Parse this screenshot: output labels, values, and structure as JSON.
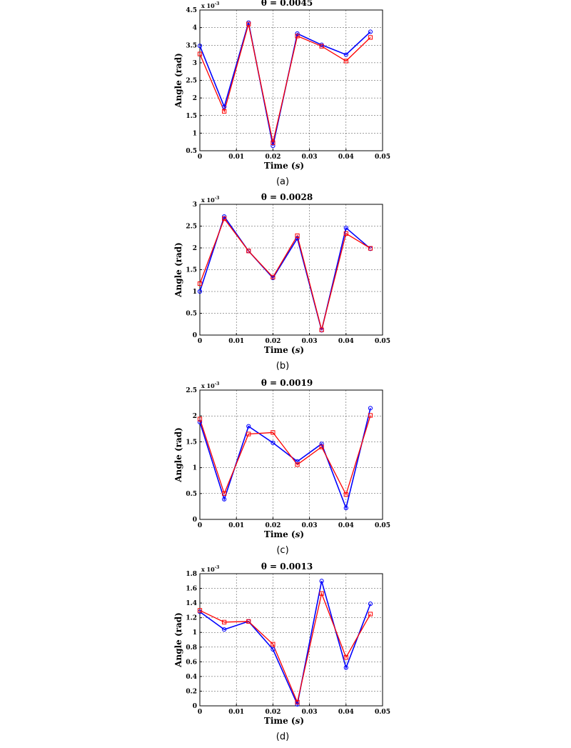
{
  "chart_data": [
    {
      "type": "line",
      "title": "θ = 0.0045",
      "caption": "(a)",
      "xlabel": "Time (s)",
      "ylabel": "Angle (rad)",
      "y_multiplier": "x 10",
      "y_multiplier_exp": "-3",
      "xlim": [
        0,
        0.05
      ],
      "ylim": [
        0.5,
        4.5
      ],
      "xticks": [
        "0",
        "0.01",
        "0.02",
        "0.03",
        "0.04",
        "0.05"
      ],
      "yticks": [
        "0.5",
        "1",
        "1.5",
        "2",
        "2.5",
        "3",
        "3.5",
        "4",
        "4.5"
      ],
      "grid": true,
      "x": [
        0,
        0.00667,
        0.01333,
        0.02,
        0.02667,
        0.03333,
        0.04,
        0.04667
      ],
      "series": [
        {
          "color": "#0000ff",
          "marker": "circle",
          "values": [
            3.48,
            1.75,
            4.14,
            0.64,
            3.83,
            3.51,
            3.23,
            3.88
          ]
        },
        {
          "color": "#ff0000",
          "marker": "square",
          "values": [
            3.25,
            1.62,
            4.1,
            0.73,
            3.76,
            3.47,
            3.05,
            3.72
          ]
        }
      ]
    },
    {
      "type": "line",
      "title": "θ = 0.0028",
      "caption": "(b)",
      "xlabel": "Time (s)",
      "ylabel": "Angle (rad)",
      "y_multiplier": "x 10",
      "y_multiplier_exp": "-3",
      "xlim": [
        0,
        0.05
      ],
      "ylim": [
        0,
        3
      ],
      "xticks": [
        "0",
        "0.01",
        "0.02",
        "0.03",
        "0.04",
        "0.05"
      ],
      "yticks": [
        "0",
        "0.5",
        "1",
        "1.5",
        "2",
        "2.5",
        "3"
      ],
      "grid": true,
      "x": [
        0,
        0.00667,
        0.01333,
        0.02,
        0.02667,
        0.03333,
        0.04,
        0.04667
      ],
      "series": [
        {
          "color": "#0000ff",
          "marker": "circle",
          "values": [
            1.0,
            2.72,
            1.93,
            1.31,
            2.22,
            0.11,
            2.46,
            1.98
          ]
        },
        {
          "color": "#ff0000",
          "marker": "square",
          "values": [
            1.18,
            2.67,
            1.93,
            1.33,
            2.28,
            0.12,
            2.33,
            1.99
          ]
        }
      ]
    },
    {
      "type": "line",
      "title": "θ = 0.0019",
      "caption": "(c)",
      "xlabel": "Time (s)",
      "ylabel": "Angle (rad)",
      "y_multiplier": "x 10",
      "y_multiplier_exp": "-3",
      "xlim": [
        0,
        0.05
      ],
      "ylim": [
        0,
        2.5
      ],
      "xticks": [
        "0",
        "0.01",
        "0.02",
        "0.03",
        "0.04",
        "0.05"
      ],
      "yticks": [
        "0",
        "0.5",
        "1",
        "1.5",
        "2",
        "2.5"
      ],
      "grid": true,
      "x": [
        0,
        0.00667,
        0.01333,
        0.02,
        0.02667,
        0.03333,
        0.04,
        0.04667
      ],
      "series": [
        {
          "color": "#0000ff",
          "marker": "circle",
          "values": [
            1.88,
            0.39,
            1.8,
            1.48,
            1.12,
            1.46,
            0.22,
            2.15
          ]
        },
        {
          "color": "#ff0000",
          "marker": "square",
          "values": [
            1.94,
            0.5,
            1.65,
            1.68,
            1.06,
            1.4,
            0.48,
            2.01
          ]
        }
      ]
    },
    {
      "type": "line",
      "title": "θ = 0.0013",
      "caption": "(d)",
      "xlabel": "Time (s)",
      "ylabel": "Angle (rad)",
      "y_multiplier": "x 10",
      "y_multiplier_exp": "-3",
      "xlim": [
        0,
        0.05
      ],
      "ylim": [
        0,
        1.8
      ],
      "xticks": [
        "0",
        "0.01",
        "0.02",
        "0.03",
        "0.04",
        "0.05"
      ],
      "yticks": [
        "0",
        "0.2",
        "0.4",
        "0.6",
        "0.8",
        "1",
        "1.2",
        "1.4",
        "1.6",
        "1.8"
      ],
      "grid": true,
      "x": [
        0,
        0.00667,
        0.01333,
        0.02,
        0.02667,
        0.03333,
        0.04,
        0.04667
      ],
      "series": [
        {
          "color": "#0000ff",
          "marker": "circle",
          "values": [
            1.28,
            1.04,
            1.15,
            0.77,
            0.02,
            1.7,
            0.52,
            1.39
          ]
        },
        {
          "color": "#ff0000",
          "marker": "square",
          "values": [
            1.3,
            1.14,
            1.15,
            0.84,
            0.05,
            1.53,
            0.66,
            1.25
          ]
        }
      ]
    }
  ]
}
